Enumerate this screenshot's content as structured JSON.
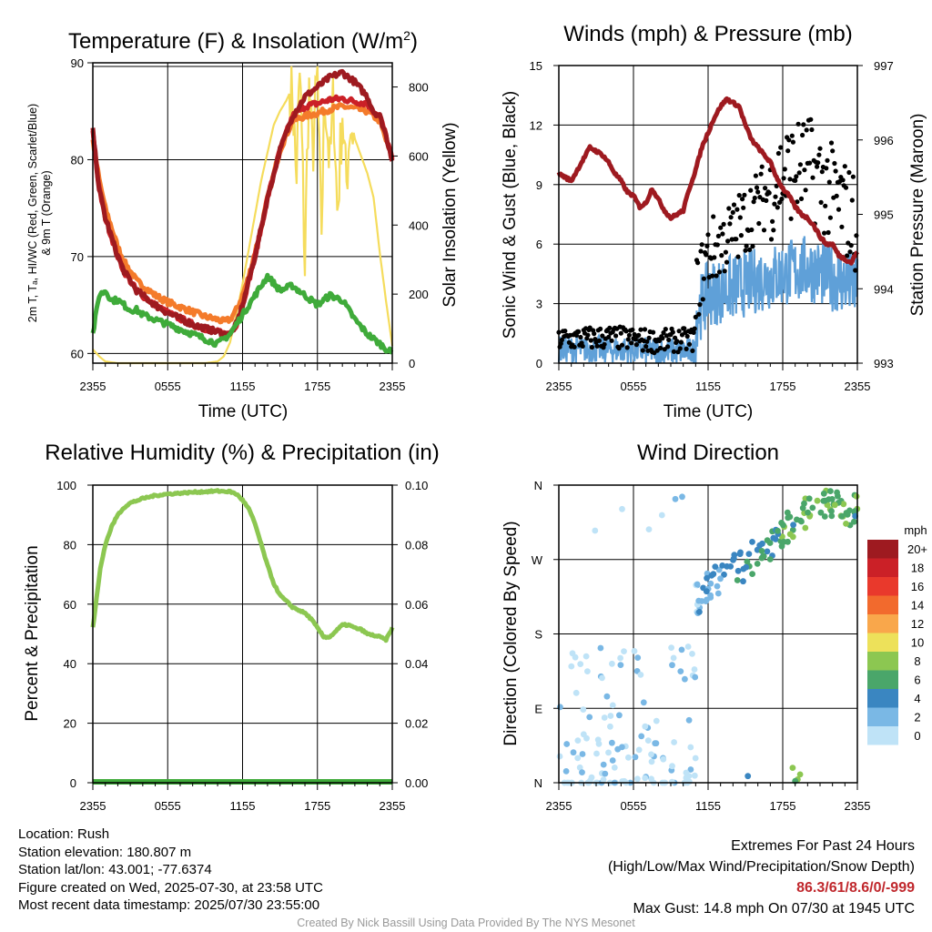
{
  "panels": {
    "temperature": {
      "title": "Temperature (F) & Insolation (W/m²)",
      "y_label_left_line1": "2m T, Tₐ, HI/WC (Red, Green, Scarlet/Blue)",
      "y_label_left_line2": "& 9m T (Orange)",
      "y_label_right": "Solar Insolation (Yellow)",
      "x_label": "Time (UTC)"
    },
    "winds": {
      "title": "Winds (mph) & Pressure (mb)",
      "y_label_left": "Sonic Wind & Gust (Blue, Black)",
      "y_label_right": "Station Pressure (Maroon)",
      "x_label": "Time (UTC)"
    },
    "humidity": {
      "title": "Relative Humidity (%) & Precipitation (in)",
      "y_label_left": "Percent & Precipitation"
    },
    "direction": {
      "title": "Wind Direction",
      "y_label_left": "Direction (Colored By Speed)",
      "legend_title": "mph"
    }
  },
  "chart_data": [
    {
      "type": "line",
      "id": "temperature",
      "x_ticks": [
        "2355",
        "0555",
        "1155",
        "1755",
        "2355"
      ],
      "x_range_hours": [
        0,
        24
      ],
      "x": [
        0,
        0.5,
        1,
        1.5,
        2,
        2.5,
        3,
        3.5,
        4,
        5,
        6,
        7,
        8,
        9,
        10,
        10.5,
        11,
        11.5,
        12,
        12.5,
        13,
        13.5,
        14,
        15,
        16,
        17,
        18,
        19,
        20,
        21,
        22,
        22.5,
        23,
        23.5,
        24
      ],
      "ylim_left": [
        59,
        90
      ],
      "yticks_left": [
        60,
        70,
        80,
        90
      ],
      "ylim_right": [
        0,
        870
      ],
      "yticks_right": [
        0,
        200,
        400,
        600,
        800
      ],
      "series": [
        {
          "color": "#f47b2b",
          "width": 5,
          "values": [
            82,
            78,
            75,
            73,
            71,
            69.5,
            68.5,
            67.5,
            67,
            66,
            65.3,
            64.8,
            64.3,
            63.8,
            63.5,
            63.3,
            63.5,
            64.5,
            66,
            68,
            70.5,
            73,
            76,
            81,
            84,
            84.5,
            84.8,
            85.2,
            85.5,
            85.3,
            85,
            84.5,
            84,
            82,
            80
          ]
        },
        {
          "color": "#cb2027",
          "width": 5,
          "values": [
            83,
            77,
            74,
            72,
            70,
            68.5,
            67.5,
            66.5,
            66,
            65,
            64.2,
            63.6,
            63,
            62.6,
            62.2,
            62,
            62,
            63,
            65,
            67.5,
            70,
            73,
            76,
            81,
            84.5,
            85.5,
            85.8,
            86.2,
            86.3,
            86,
            85.8,
            85,
            84.5,
            82.5,
            80
          ]
        },
        {
          "color": "#9e1a20",
          "width": 5,
          "values": [
            83,
            77,
            74,
            72,
            70,
            68.5,
            67.5,
            66.5,
            66,
            65,
            64.2,
            63.6,
            63,
            62.6,
            62.2,
            62,
            62,
            63,
            65,
            67.5,
            70,
            73,
            76,
            81,
            84.5,
            86.5,
            87.5,
            88.5,
            89,
            88,
            86.5,
            85,
            84.5,
            82.5,
            80
          ]
        },
        {
          "color": "#3fab3a",
          "width": 5,
          "values": [
            62,
            66,
            66.5,
            65.5,
            65.5,
            65,
            64.5,
            64.5,
            64,
            63.5,
            63,
            62.5,
            62,
            61.5,
            61,
            61.5,
            62,
            63,
            64,
            65,
            66,
            67,
            68,
            66.5,
            67,
            66,
            65,
            66,
            65.5,
            63.5,
            62,
            61.5,
            61,
            60.5,
            60
          ]
        }
      ],
      "insolation": {
        "color": "#f5dc5c",
        "x": [
          0,
          0.5,
          1,
          2,
          4,
          6,
          8,
          9,
          10,
          10.5,
          11,
          11.5,
          12,
          12.5,
          13,
          13.5,
          14,
          14.5,
          15,
          15.5,
          16,
          16.3,
          16.6,
          17,
          17.3,
          17.6,
          18,
          18.3,
          18.6,
          19,
          19.3,
          19.6,
          20,
          20.3,
          20.6,
          21,
          21.5,
          22,
          22.5,
          23,
          23.5,
          24
        ],
        "values": [
          40,
          20,
          5,
          0,
          0,
          0,
          0,
          0,
          5,
          20,
          60,
          140,
          230,
          330,
          430,
          530,
          610,
          690,
          730,
          760,
          800,
          520,
          850,
          280,
          810,
          600,
          830,
          350,
          800,
          560,
          780,
          420,
          740,
          500,
          700,
          650,
          600,
          550,
          480,
          320,
          180,
          50
        ]
      }
    },
    {
      "type": "line+scatter",
      "id": "winds",
      "x_ticks": [
        "2355",
        "0555",
        "1155",
        "1755",
        "2355"
      ],
      "ylim_left": [
        0,
        15
      ],
      "yticks_left": [
        0,
        3,
        6,
        9,
        12,
        15
      ],
      "ylim_right": [
        993,
        997
      ],
      "yticks_right": [
        993,
        994,
        995,
        996,
        997
      ],
      "pressure": {
        "color": "#9e1a20",
        "x": [
          0,
          0.5,
          1,
          1.5,
          2,
          2.5,
          3,
          3.5,
          4,
          4.5,
          5,
          5.5,
          6,
          6.5,
          7,
          7.5,
          8,
          8.5,
          9,
          9.5,
          10,
          10.5,
          11,
          11.5,
          12,
          12.5,
          13,
          13.5,
          14,
          14.5,
          15,
          15.5,
          16,
          16.5,
          17,
          17.5,
          18,
          18.5,
          19,
          19.5,
          20,
          20.5,
          21,
          21.5,
          22,
          22.5,
          23,
          23.5,
          24
        ],
        "values": [
          995.55,
          995.5,
          995.45,
          995.6,
          995.75,
          995.9,
          995.85,
          995.8,
          995.7,
          995.55,
          995.45,
          995.3,
          995.25,
          995.1,
          995.15,
          995.35,
          995.2,
          995.05,
          994.95,
          995.0,
          995.05,
          995.35,
          995.6,
          995.9,
          996.1,
          996.3,
          996.45,
          996.55,
          996.5,
          996.45,
          996.2,
          996.0,
          995.9,
          995.8,
          995.7,
          995.5,
          995.35,
          995.25,
          995.1,
          995.0,
          994.95,
          994.85,
          994.7,
          994.6,
          994.6,
          994.45,
          994.4,
          994.35,
          994.5
        ]
      },
      "wind_mean_color": "#5fa0d8",
      "gust_color": "#000000",
      "max_gust": 14.8
    },
    {
      "type": "line",
      "id": "humidity",
      "x_ticks": [
        "2355",
        "0555",
        "1155",
        "1755",
        "2355"
      ],
      "ylim_left": [
        0,
        100
      ],
      "yticks_left": [
        0,
        20,
        40,
        60,
        80,
        100
      ],
      "ylim_right": [
        0,
        0.1
      ],
      "yticks_right": [
        "0.00",
        "0.02",
        "0.04",
        "0.06",
        "0.08",
        "0.10"
      ],
      "rh": {
        "color": "#8cc751",
        "x": [
          0,
          0.3,
          0.6,
          1,
          1.5,
          2,
          2.5,
          3,
          4,
          5,
          6,
          7,
          8,
          9,
          10,
          11,
          11.5,
          12,
          12.5,
          13,
          13.5,
          14,
          14.5,
          15,
          15.5,
          16,
          16.5,
          17,
          17.5,
          18,
          18.5,
          19,
          19.5,
          20,
          20.5,
          21,
          21.5,
          22,
          22.5,
          23,
          23.5,
          24
        ],
        "values": [
          52,
          62,
          72,
          80,
          86,
          90,
          92.5,
          94,
          95.5,
          96.5,
          97,
          97.3,
          97.6,
          97.8,
          98,
          97.8,
          97,
          95,
          92,
          87,
          80,
          73,
          67,
          63,
          61,
          59,
          58,
          57,
          55,
          52,
          49,
          49,
          51,
          53,
          53,
          52,
          51.5,
          50,
          49.5,
          49,
          48,
          52
        ]
      },
      "precip": {
        "color": "#3fab3a",
        "value": 0
      }
    },
    {
      "type": "scatter",
      "id": "direction",
      "x_ticks": [
        "2355",
        "0555",
        "1155",
        "1755",
        "2355"
      ],
      "y_ticks": [
        "N",
        "E",
        "S",
        "W",
        "N"
      ],
      "ylim": [
        0,
        360
      ],
      "legend": [
        "20+",
        "18",
        "16",
        "14",
        "12",
        "10",
        "8",
        "6",
        "4",
        "2",
        "0"
      ],
      "legend_colors": [
        "#9e1a20",
        "#cb2027",
        "#e9392c",
        "#f26a2d",
        "#f9a74b",
        "#ede15a",
        "#8cc751",
        "#4aa66a",
        "#3a86c1",
        "#7ab8e5",
        "#bfe3f7"
      ]
    }
  ],
  "footer": {
    "location": "Location: Rush",
    "elevation": "Station elevation: 180.807 m",
    "latlon": "Station lat/lon: 43.001; -77.6374",
    "created": "Figure created on Wed, 2025-07-30, at 23:58 UTC",
    "recent": "Most recent data timestamp: 2025/07/30 23:55:00",
    "extremes_title": "Extremes For Past 24 Hours",
    "extremes_sub": "(High/Low/Max Wind/Precipitation/Snow Depth)",
    "extremes_values": "86.3/61/8.6/0/-999",
    "max_gust": "Max Gust: 14.8 mph On 07/30 at 1945 UTC",
    "credit": "Created By Nick Bassill Using Data Provided By The NYS Mesonet"
  }
}
